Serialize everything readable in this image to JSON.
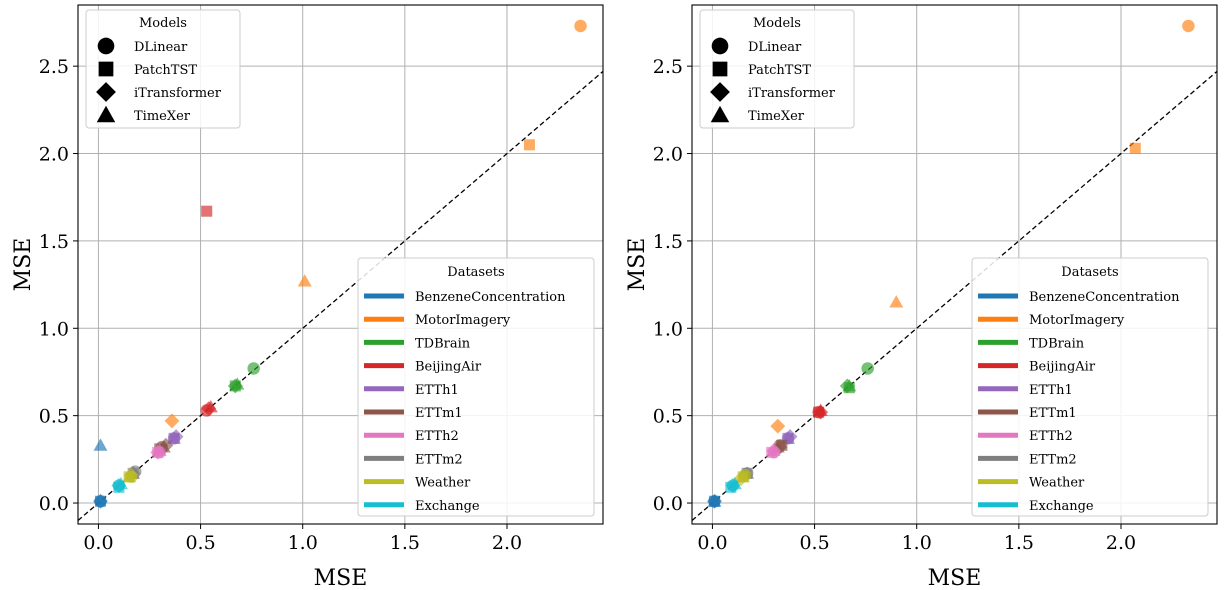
{
  "chart_data": [
    {
      "type": "scatter",
      "xlabel": "MSE",
      "ylabel": "MSE",
      "xlim": [
        -0.1,
        2.47
      ],
      "ylim": [
        -0.12,
        2.85
      ],
      "xticks": [
        0.0,
        0.5,
        1.0,
        1.5,
        2.0
      ],
      "yticks": [
        0.0,
        0.5,
        1.0,
        1.5,
        2.0,
        2.5
      ],
      "xtick_labels": [
        "0.0",
        "0.5",
        "1.0",
        "1.5",
        "2.0"
      ],
      "ytick_labels": [
        "0.0",
        "0.5",
        "1.0",
        "1.5",
        "2.0",
        "2.5"
      ],
      "grid": true,
      "reference_line": "y = x (dashed)",
      "models_legend": {
        "title": "Models",
        "placement": "upper-left",
        "entries": [
          {
            "label": "DLinear",
            "marker": "circle"
          },
          {
            "label": "PatchTST",
            "marker": "square"
          },
          {
            "label": "iTransformer",
            "marker": "diamond"
          },
          {
            "label": "TimeXer",
            "marker": "triangle"
          }
        ]
      },
      "datasets_legend": {
        "title": "Datasets",
        "placement": "lower-right",
        "entries": [
          {
            "label": "BenzeneConcentration",
            "color": "#1f77b4"
          },
          {
            "label": "MotorImagery",
            "color": "#ff7f0e"
          },
          {
            "label": "TDBrain",
            "color": "#2ca02c"
          },
          {
            "label": "BeijingAir",
            "color": "#d62728"
          },
          {
            "label": "ETTh1",
            "color": "#9467bd"
          },
          {
            "label": "ETTm1",
            "color": "#8c564b"
          },
          {
            "label": "ETTh2",
            "color": "#e377c2"
          },
          {
            "label": "ETTm2",
            "color": "#7f7f7f"
          },
          {
            "label": "Weather",
            "color": "#bcbd22"
          },
          {
            "label": "Exchange",
            "color": "#17becf"
          }
        ]
      },
      "points": [
        {
          "dataset": "BenzeneConcentration",
          "model": "DLinear",
          "x": 0.01,
          "y": 0.01
        },
        {
          "dataset": "BenzeneConcentration",
          "model": "PatchTST",
          "x": 0.01,
          "y": 0.01
        },
        {
          "dataset": "BenzeneConcentration",
          "model": "iTransformer",
          "x": 0.01,
          "y": 0.01
        },
        {
          "dataset": "BenzeneConcentration",
          "model": "TimeXer",
          "x": 0.01,
          "y": 0.33
        },
        {
          "dataset": "MotorImagery",
          "model": "DLinear",
          "x": 2.36,
          "y": 2.73
        },
        {
          "dataset": "MotorImagery",
          "model": "PatchTST",
          "x": 2.11,
          "y": 2.05
        },
        {
          "dataset": "MotorImagery",
          "model": "iTransformer",
          "x": 0.36,
          "y": 0.47
        },
        {
          "dataset": "MotorImagery",
          "model": "TimeXer",
          "x": 1.01,
          "y": 1.27
        },
        {
          "dataset": "TDBrain",
          "model": "DLinear",
          "x": 0.76,
          "y": 0.77
        },
        {
          "dataset": "TDBrain",
          "model": "PatchTST",
          "x": 0.67,
          "y": 0.67
        },
        {
          "dataset": "TDBrain",
          "model": "iTransformer",
          "x": 0.67,
          "y": 0.67
        },
        {
          "dataset": "TDBrain",
          "model": "TimeXer",
          "x": 0.68,
          "y": 0.68
        },
        {
          "dataset": "BeijingAir",
          "model": "DLinear",
          "x": 0.53,
          "y": 0.53
        },
        {
          "dataset": "BeijingAir",
          "model": "PatchTST",
          "x": 0.53,
          "y": 1.67
        },
        {
          "dataset": "BeijingAir",
          "model": "iTransformer",
          "x": 0.54,
          "y": 0.54
        },
        {
          "dataset": "BeijingAir",
          "model": "TimeXer",
          "x": 0.55,
          "y": 0.55
        },
        {
          "dataset": "ETTh1",
          "model": "DLinear",
          "x": 0.37,
          "y": 0.37
        },
        {
          "dataset": "ETTh1",
          "model": "PatchTST",
          "x": 0.37,
          "y": 0.37
        },
        {
          "dataset": "ETTh1",
          "model": "iTransformer",
          "x": 0.38,
          "y": 0.38
        },
        {
          "dataset": "ETTh1",
          "model": "TimeXer",
          "x": 0.37,
          "y": 0.37
        },
        {
          "dataset": "ETTm1",
          "model": "DLinear",
          "x": 0.31,
          "y": 0.32
        },
        {
          "dataset": "ETTm1",
          "model": "PatchTST",
          "x": 0.3,
          "y": 0.31
        },
        {
          "dataset": "ETTm1",
          "model": "iTransformer",
          "x": 0.33,
          "y": 0.33
        },
        {
          "dataset": "ETTm1",
          "model": "TimeXer",
          "x": 0.32,
          "y": 0.32
        },
        {
          "dataset": "ETTh2",
          "model": "DLinear",
          "x": 0.3,
          "y": 0.29
        },
        {
          "dataset": "ETTh2",
          "model": "PatchTST",
          "x": 0.29,
          "y": 0.29
        },
        {
          "dataset": "ETTh2",
          "model": "iTransformer",
          "x": 0.29,
          "y": 0.29
        },
        {
          "dataset": "ETTh2",
          "model": "TimeXer",
          "x": 0.3,
          "y": 0.3
        },
        {
          "dataset": "ETTm2",
          "model": "DLinear",
          "x": 0.18,
          "y": 0.18
        },
        {
          "dataset": "ETTm2",
          "model": "PatchTST",
          "x": 0.17,
          "y": 0.17
        },
        {
          "dataset": "ETTm2",
          "model": "iTransformer",
          "x": 0.17,
          "y": 0.17
        },
        {
          "dataset": "ETTm2",
          "model": "TimeXer",
          "x": 0.17,
          "y": 0.17
        },
        {
          "dataset": "Weather",
          "model": "DLinear",
          "x": 0.16,
          "y": 0.15
        },
        {
          "dataset": "Weather",
          "model": "PatchTST",
          "x": 0.15,
          "y": 0.15
        },
        {
          "dataset": "Weather",
          "model": "iTransformer",
          "x": 0.16,
          "y": 0.16
        },
        {
          "dataset": "Weather",
          "model": "TimeXer",
          "x": 0.15,
          "y": 0.15
        },
        {
          "dataset": "Exchange",
          "model": "DLinear",
          "x": 0.1,
          "y": 0.1
        },
        {
          "dataset": "Exchange",
          "model": "PatchTST",
          "x": 0.1,
          "y": 0.09
        },
        {
          "dataset": "Exchange",
          "model": "iTransformer",
          "x": 0.1,
          "y": 0.1
        },
        {
          "dataset": "Exchange",
          "model": "TimeXer",
          "x": 0.11,
          "y": 0.11
        }
      ]
    },
    {
      "type": "scatter",
      "xlabel": "MSE",
      "ylabel": "MSE",
      "xlim": [
        -0.1,
        2.47
      ],
      "ylim": [
        -0.12,
        2.85
      ],
      "xticks": [
        0.0,
        0.5,
        1.0,
        1.5,
        2.0
      ],
      "yticks": [
        0.0,
        0.5,
        1.0,
        1.5,
        2.0,
        2.5
      ],
      "xtick_labels": [
        "0.0",
        "0.5",
        "1.0",
        "1.5",
        "2.0"
      ],
      "ytick_labels": [
        "0.0",
        "0.5",
        "1.0",
        "1.5",
        "2.0",
        "2.5"
      ],
      "grid": true,
      "reference_line": "y = x (dashed)",
      "models_legend": {
        "title": "Models",
        "placement": "upper-left",
        "entries": [
          {
            "label": "DLinear",
            "marker": "circle"
          },
          {
            "label": "PatchTST",
            "marker": "square"
          },
          {
            "label": "iTransformer",
            "marker": "diamond"
          },
          {
            "label": "TimeXer",
            "marker": "triangle"
          }
        ]
      },
      "datasets_legend": {
        "title": "Datasets",
        "placement": "lower-right",
        "entries": [
          {
            "label": "BenzeneConcentration",
            "color": "#1f77b4"
          },
          {
            "label": "MotorImagery",
            "color": "#ff7f0e"
          },
          {
            "label": "TDBrain",
            "color": "#2ca02c"
          },
          {
            "label": "BeijingAir",
            "color": "#d62728"
          },
          {
            "label": "ETTh1",
            "color": "#9467bd"
          },
          {
            "label": "ETTm1",
            "color": "#8c564b"
          },
          {
            "label": "ETTh2",
            "color": "#e377c2"
          },
          {
            "label": "ETTm2",
            "color": "#7f7f7f"
          },
          {
            "label": "Weather",
            "color": "#bcbd22"
          },
          {
            "label": "Exchange",
            "color": "#17becf"
          }
        ]
      },
      "points": [
        {
          "dataset": "BenzeneConcentration",
          "model": "DLinear",
          "x": 0.01,
          "y": 0.01
        },
        {
          "dataset": "BenzeneConcentration",
          "model": "PatchTST",
          "x": 0.01,
          "y": 0.01
        },
        {
          "dataset": "BenzeneConcentration",
          "model": "iTransformer",
          "x": 0.01,
          "y": 0.01
        },
        {
          "dataset": "BenzeneConcentration",
          "model": "TimeXer",
          "x": 0.01,
          "y": 0.01
        },
        {
          "dataset": "MotorImagery",
          "model": "DLinear",
          "x": 2.33,
          "y": 2.73
        },
        {
          "dataset": "MotorImagery",
          "model": "PatchTST",
          "x": 2.07,
          "y": 2.03
        },
        {
          "dataset": "MotorImagery",
          "model": "iTransformer",
          "x": 0.32,
          "y": 0.44
        },
        {
          "dataset": "MotorImagery",
          "model": "TimeXer",
          "x": 0.9,
          "y": 1.15
        },
        {
          "dataset": "TDBrain",
          "model": "DLinear",
          "x": 0.76,
          "y": 0.77
        },
        {
          "dataset": "TDBrain",
          "model": "PatchTST",
          "x": 0.67,
          "y": 0.66
        },
        {
          "dataset": "TDBrain",
          "model": "iTransformer",
          "x": 0.66,
          "y": 0.67
        },
        {
          "dataset": "TDBrain",
          "model": "TimeXer",
          "x": 0.67,
          "y": 0.67
        },
        {
          "dataset": "BeijingAir",
          "model": "DLinear",
          "x": 0.52,
          "y": 0.52
        },
        {
          "dataset": "BeijingAir",
          "model": "PatchTST",
          "x": 0.52,
          "y": 0.52
        },
        {
          "dataset": "BeijingAir",
          "model": "iTransformer",
          "x": 0.53,
          "y": 0.52
        },
        {
          "dataset": "BeijingAir",
          "model": "TimeXer",
          "x": 0.53,
          "y": 0.53
        },
        {
          "dataset": "ETTh1",
          "model": "DLinear",
          "x": 0.37,
          "y": 0.37
        },
        {
          "dataset": "ETTh1",
          "model": "PatchTST",
          "x": 0.37,
          "y": 0.37
        },
        {
          "dataset": "ETTh1",
          "model": "iTransformer",
          "x": 0.38,
          "y": 0.38
        },
        {
          "dataset": "ETTh1",
          "model": "TimeXer",
          "x": 0.37,
          "y": 0.37
        },
        {
          "dataset": "ETTm1",
          "model": "DLinear",
          "x": 0.33,
          "y": 0.33
        },
        {
          "dataset": "ETTm1",
          "model": "PatchTST",
          "x": 0.34,
          "y": 0.33
        },
        {
          "dataset": "ETTm1",
          "model": "iTransformer",
          "x": 0.33,
          "y": 0.32
        },
        {
          "dataset": "ETTm1",
          "model": "TimeXer",
          "x": 0.32,
          "y": 0.32
        },
        {
          "dataset": "ETTh2",
          "model": "DLinear",
          "x": 0.3,
          "y": 0.29
        },
        {
          "dataset": "ETTh2",
          "model": "PatchTST",
          "x": 0.29,
          "y": 0.29
        },
        {
          "dataset": "ETTh2",
          "model": "iTransformer",
          "x": 0.3,
          "y": 0.3
        },
        {
          "dataset": "ETTh2",
          "model": "TimeXer",
          "x": 0.3,
          "y": 0.3
        },
        {
          "dataset": "ETTm2",
          "model": "DLinear",
          "x": 0.17,
          "y": 0.17
        },
        {
          "dataset": "ETTm2",
          "model": "PatchTST",
          "x": 0.17,
          "y": 0.17
        },
        {
          "dataset": "ETTm2",
          "model": "iTransformer",
          "x": 0.16,
          "y": 0.16
        },
        {
          "dataset": "ETTm2",
          "model": "TimeXer",
          "x": 0.17,
          "y": 0.17
        },
        {
          "dataset": "Weather",
          "model": "DLinear",
          "x": 0.16,
          "y": 0.16
        },
        {
          "dataset": "Weather",
          "model": "PatchTST",
          "x": 0.15,
          "y": 0.15
        },
        {
          "dataset": "Weather",
          "model": "iTransformer",
          "x": 0.14,
          "y": 0.14
        },
        {
          "dataset": "Weather",
          "model": "TimeXer",
          "x": 0.15,
          "y": 0.15
        },
        {
          "dataset": "Exchange",
          "model": "DLinear",
          "x": 0.1,
          "y": 0.1
        },
        {
          "dataset": "Exchange",
          "model": "PatchTST",
          "x": 0.09,
          "y": 0.09
        },
        {
          "dataset": "Exchange",
          "model": "iTransformer",
          "x": 0.1,
          "y": 0.1
        },
        {
          "dataset": "Exchange",
          "model": "TimeXer",
          "x": 0.11,
          "y": 0.11
        }
      ]
    }
  ]
}
